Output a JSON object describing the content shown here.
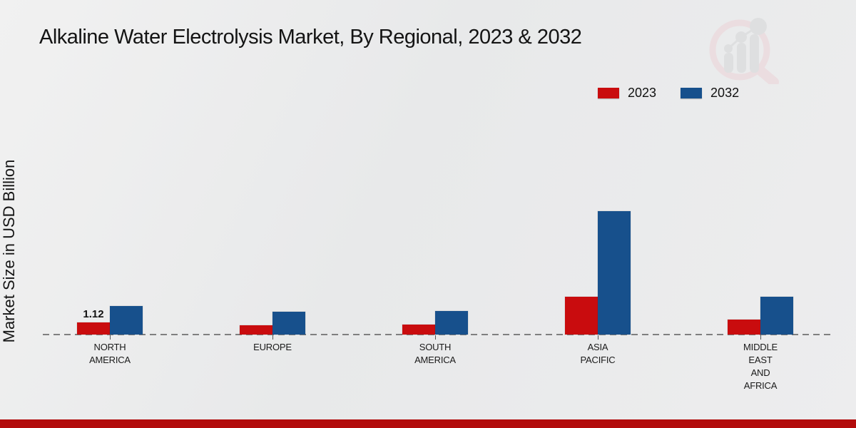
{
  "title": "Alkaline Water Electrolysis Market, By Regional, 2023 & 2032",
  "y_axis_label": "Market Size in USD Billion",
  "legend": {
    "items": [
      {
        "label": "2023",
        "color": "#c90c0e"
      },
      {
        "label": "2032",
        "color": "#17508c"
      }
    ]
  },
  "footer": {
    "color": "#b20b0b"
  },
  "colors": {
    "background": "#e9eaec",
    "baseline": "#7f7f7f",
    "bar_red": "#c90c0e",
    "bar_blue": "#17508c"
  },
  "chart_data": {
    "type": "bar",
    "title": "Alkaline Water Electrolysis Market, By Regional, 2023 & 2032",
    "xlabel": "",
    "ylabel": "Market Size in USD Billion",
    "categories": [
      "NORTH AMERICA",
      "EUROPE",
      "SOUTH AMERICA",
      "ASIA PACIFIC",
      "MIDDLE EAST AND AFRICA"
    ],
    "category_label_lines": [
      [
        "NORTH",
        "AMERICA"
      ],
      [
        "EUROPE"
      ],
      [
        "SOUTH",
        "AMERICA"
      ],
      [
        "ASIA",
        "PACIFIC"
      ],
      [
        "MIDDLE",
        "EAST",
        "AND",
        "AFRICA"
      ]
    ],
    "series": [
      {
        "name": "2023",
        "color": "#c90c0e",
        "values": [
          1.12,
          0.85,
          0.9,
          3.5,
          1.4
        ],
        "data_labels": [
          "1.12",
          "",
          "",
          "",
          ""
        ]
      },
      {
        "name": "2032",
        "color": "#17508c",
        "values": [
          2.6,
          2.1,
          2.2,
          11.4,
          3.5
        ],
        "data_labels": [
          "",
          "",
          "",
          "",
          ""
        ]
      }
    ],
    "ylim": [
      0,
      12
    ],
    "grid": false,
    "legend_position": "top-right",
    "axis_line_style": "dashed"
  }
}
